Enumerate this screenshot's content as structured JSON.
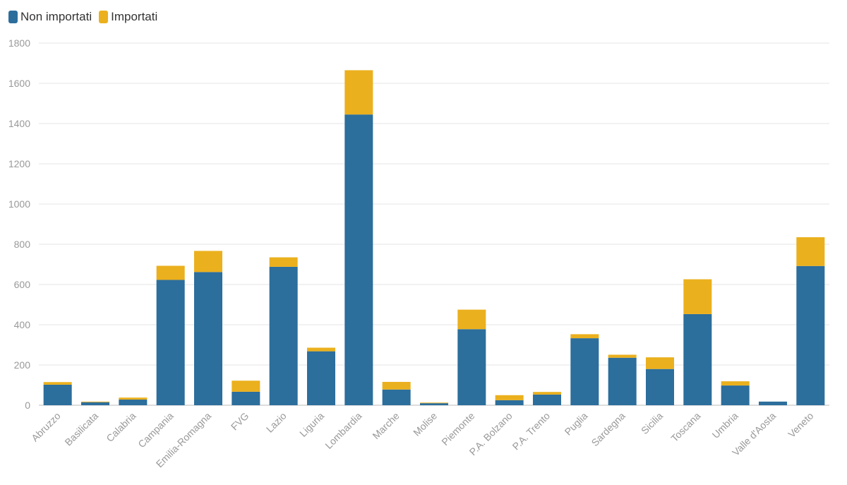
{
  "chart_data": {
    "type": "bar",
    "stacked": true,
    "title": "",
    "xlabel": "",
    "ylabel": "",
    "ylim": [
      0,
      1800
    ],
    "yticks": [
      0,
      200,
      400,
      600,
      800,
      1000,
      1200,
      1400,
      1600,
      1800
    ],
    "grid": true,
    "legend_position": "top-left",
    "categories": [
      "Abruzzo",
      "Basilicata",
      "Calabria",
      "Campania",
      "Emilia-Romagna",
      "FVG",
      "Lazio",
      "Liguria",
      "Lombardia",
      "Marche",
      "Molise",
      "Piemonte",
      "P.A. Bolzano",
      "P.A. Trento",
      "Puglia",
      "Sardegna",
      "Sicilia",
      "Toscana",
      "Umbria",
      "Valle d'Aosta",
      "Veneto"
    ],
    "series": [
      {
        "name": "Non importati",
        "color": "#2c6e9c",
        "values": [
          102,
          15,
          28,
          623,
          662,
          67,
          688,
          268,
          1445,
          78,
          10,
          378,
          25,
          53,
          333,
          236,
          180,
          453,
          98,
          18,
          692
        ]
      },
      {
        "name": "Importati",
        "color": "#ebb01d",
        "values": [
          13,
          3,
          10,
          70,
          105,
          55,
          47,
          18,
          220,
          38,
          3,
          97,
          25,
          13,
          20,
          15,
          58,
          173,
          21,
          0,
          143
        ]
      }
    ]
  }
}
